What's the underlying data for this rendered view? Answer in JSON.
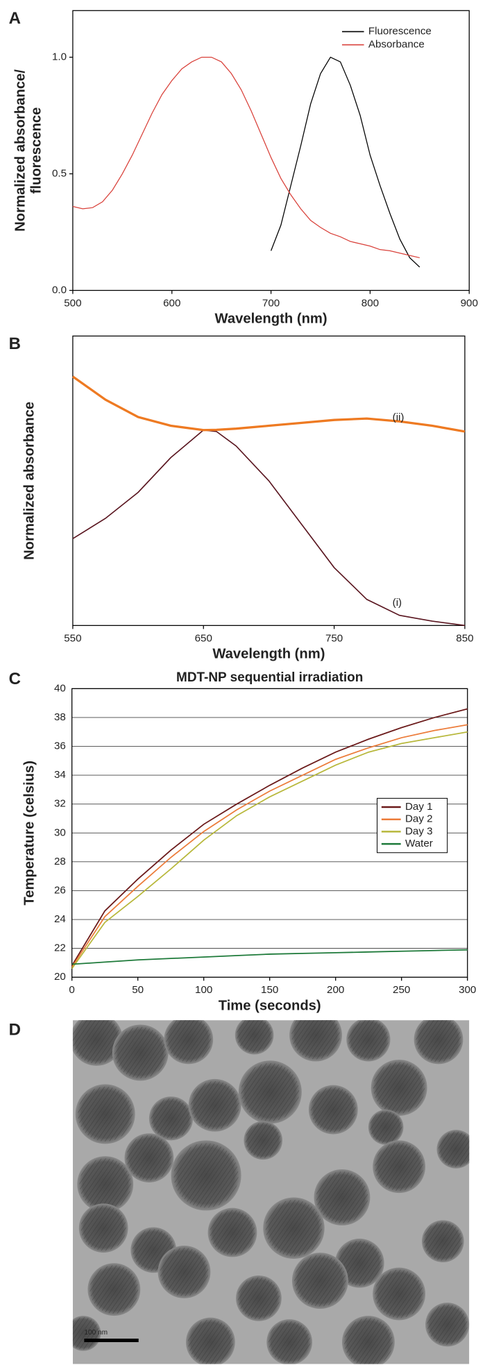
{
  "chart_data": [
    {
      "type": "line",
      "label": "A",
      "xlabel": "Wavelength (nm)",
      "ylabel": [
        "Normalized absorbance/",
        "fluorescence"
      ],
      "xlim": [
        500,
        900
      ],
      "ylim": [
        0,
        1.2
      ],
      "xticks": [
        500,
        600,
        700,
        800,
        900
      ],
      "yticks": [
        {
          "value": 0,
          "label": "0.0"
        },
        {
          "value": 0.5,
          "label": "0.5"
        },
        {
          "value": 1,
          "label": "1.0"
        }
      ],
      "grid": false,
      "legend": "upper right",
      "line_width": 1,
      "series": [
        {
          "name": "Fluorescence",
          "color": "#000000",
          "x": [
            700,
            710,
            720,
            730,
            740,
            750,
            760,
            770,
            780,
            790,
            800,
            810,
            820,
            830,
            840,
            850
          ],
          "values": [
            0.17,
            0.28,
            0.45,
            0.62,
            0.8,
            0.93,
            1.0,
            0.98,
            0.88,
            0.75,
            0.58,
            0.45,
            0.33,
            0.22,
            0.14,
            0.1
          ]
        },
        {
          "name": "Absorbance",
          "color": "#d9413a",
          "x": [
            500,
            510,
            520,
            530,
            540,
            550,
            560,
            570,
            580,
            590,
            600,
            610,
            620,
            630,
            640,
            650,
            660,
            670,
            680,
            690,
            700,
            710,
            720,
            730,
            740,
            750,
            760,
            770,
            780,
            790,
            800,
            810,
            820,
            830,
            840,
            850
          ],
          "values": [
            0.36,
            0.35,
            0.355,
            0.38,
            0.43,
            0.5,
            0.58,
            0.67,
            0.76,
            0.84,
            0.9,
            0.95,
            0.98,
            1.0,
            1.0,
            0.98,
            0.93,
            0.86,
            0.77,
            0.67,
            0.57,
            0.48,
            0.41,
            0.35,
            0.3,
            0.27,
            0.245,
            0.23,
            0.21,
            0.2,
            0.19,
            0.175,
            0.17,
            0.16,
            0.15,
            0.14
          ]
        }
      ]
    },
    {
      "type": "line",
      "label": "B",
      "xlabel": "Wavelength (nm)",
      "ylabel": "Normalized absorbance",
      "xlim": [
        550,
        850
      ],
      "ylim": [
        0,
        1
      ],
      "xticks": [
        550,
        650,
        750,
        850
      ],
      "grid": false,
      "legend": "inline",
      "line_width": 1.3,
      "x": [
        550,
        575,
        600,
        625,
        650,
        660,
        675,
        700,
        725,
        750,
        775,
        800,
        825,
        850
      ],
      "series": [
        {
          "name": "(i)",
          "color": "#5a1620",
          "values": [
            0.3,
            0.37,
            0.46,
            0.58,
            0.675,
            0.67,
            0.62,
            0.5,
            0.35,
            0.2,
            0.09,
            0.035,
            0.015,
            0.0
          ]
        },
        {
          "name": "(ii)",
          "color": "#ee7a22",
          "values": [
            0.86,
            0.78,
            0.72,
            0.69,
            0.675,
            0.676,
            0.68,
            0.69,
            0.7,
            0.71,
            0.715,
            0.705,
            0.69,
            0.67
          ]
        }
      ]
    },
    {
      "type": "line",
      "label": "C",
      "title": "MDT-NP sequential irradiation",
      "xlabel": "Time (seconds)",
      "ylabel": "Temperature (celsius)",
      "xlim": [
        0,
        300
      ],
      "ylim": [
        20,
        40
      ],
      "xticks": [
        0,
        50,
        100,
        150,
        200,
        250,
        300
      ],
      "yticks": [
        20,
        22,
        24,
        26,
        28,
        30,
        32,
        34,
        36,
        38,
        40
      ],
      "grid": true,
      "legend": "center right",
      "line_width": 1.4,
      "x": [
        0,
        25,
        50,
        75,
        100,
        125,
        150,
        175,
        200,
        225,
        250,
        275,
        300
      ],
      "series": [
        {
          "name": "Day 1",
          "color": "#6b1a1a",
          "values": [
            20.8,
            24.6,
            26.8,
            28.8,
            30.6,
            32.0,
            33.3,
            34.5,
            35.6,
            36.5,
            37.3,
            38.0,
            38.6
          ]
        },
        {
          "name": "Day 2",
          "color": "#ec7c3a",
          "values": [
            20.7,
            24.2,
            26.3,
            28.3,
            30.1,
            31.6,
            32.9,
            34.0,
            35.1,
            35.9,
            36.6,
            37.1,
            37.5
          ]
        },
        {
          "name": "Day 3",
          "color": "#b8b83c",
          "values": [
            20.6,
            23.8,
            25.6,
            27.5,
            29.5,
            31.2,
            32.5,
            33.6,
            34.7,
            35.6,
            36.2,
            36.6,
            37.0
          ]
        },
        {
          "name": "Water",
          "color": "#1e7a3a",
          "values": [
            20.9,
            21.05,
            21.2,
            21.3,
            21.4,
            21.5,
            21.6,
            21.65,
            21.7,
            21.75,
            21.8,
            21.85,
            21.9
          ]
        }
      ]
    }
  ],
  "micrograph": {
    "label": "D",
    "scale_bar": "100 nm"
  }
}
